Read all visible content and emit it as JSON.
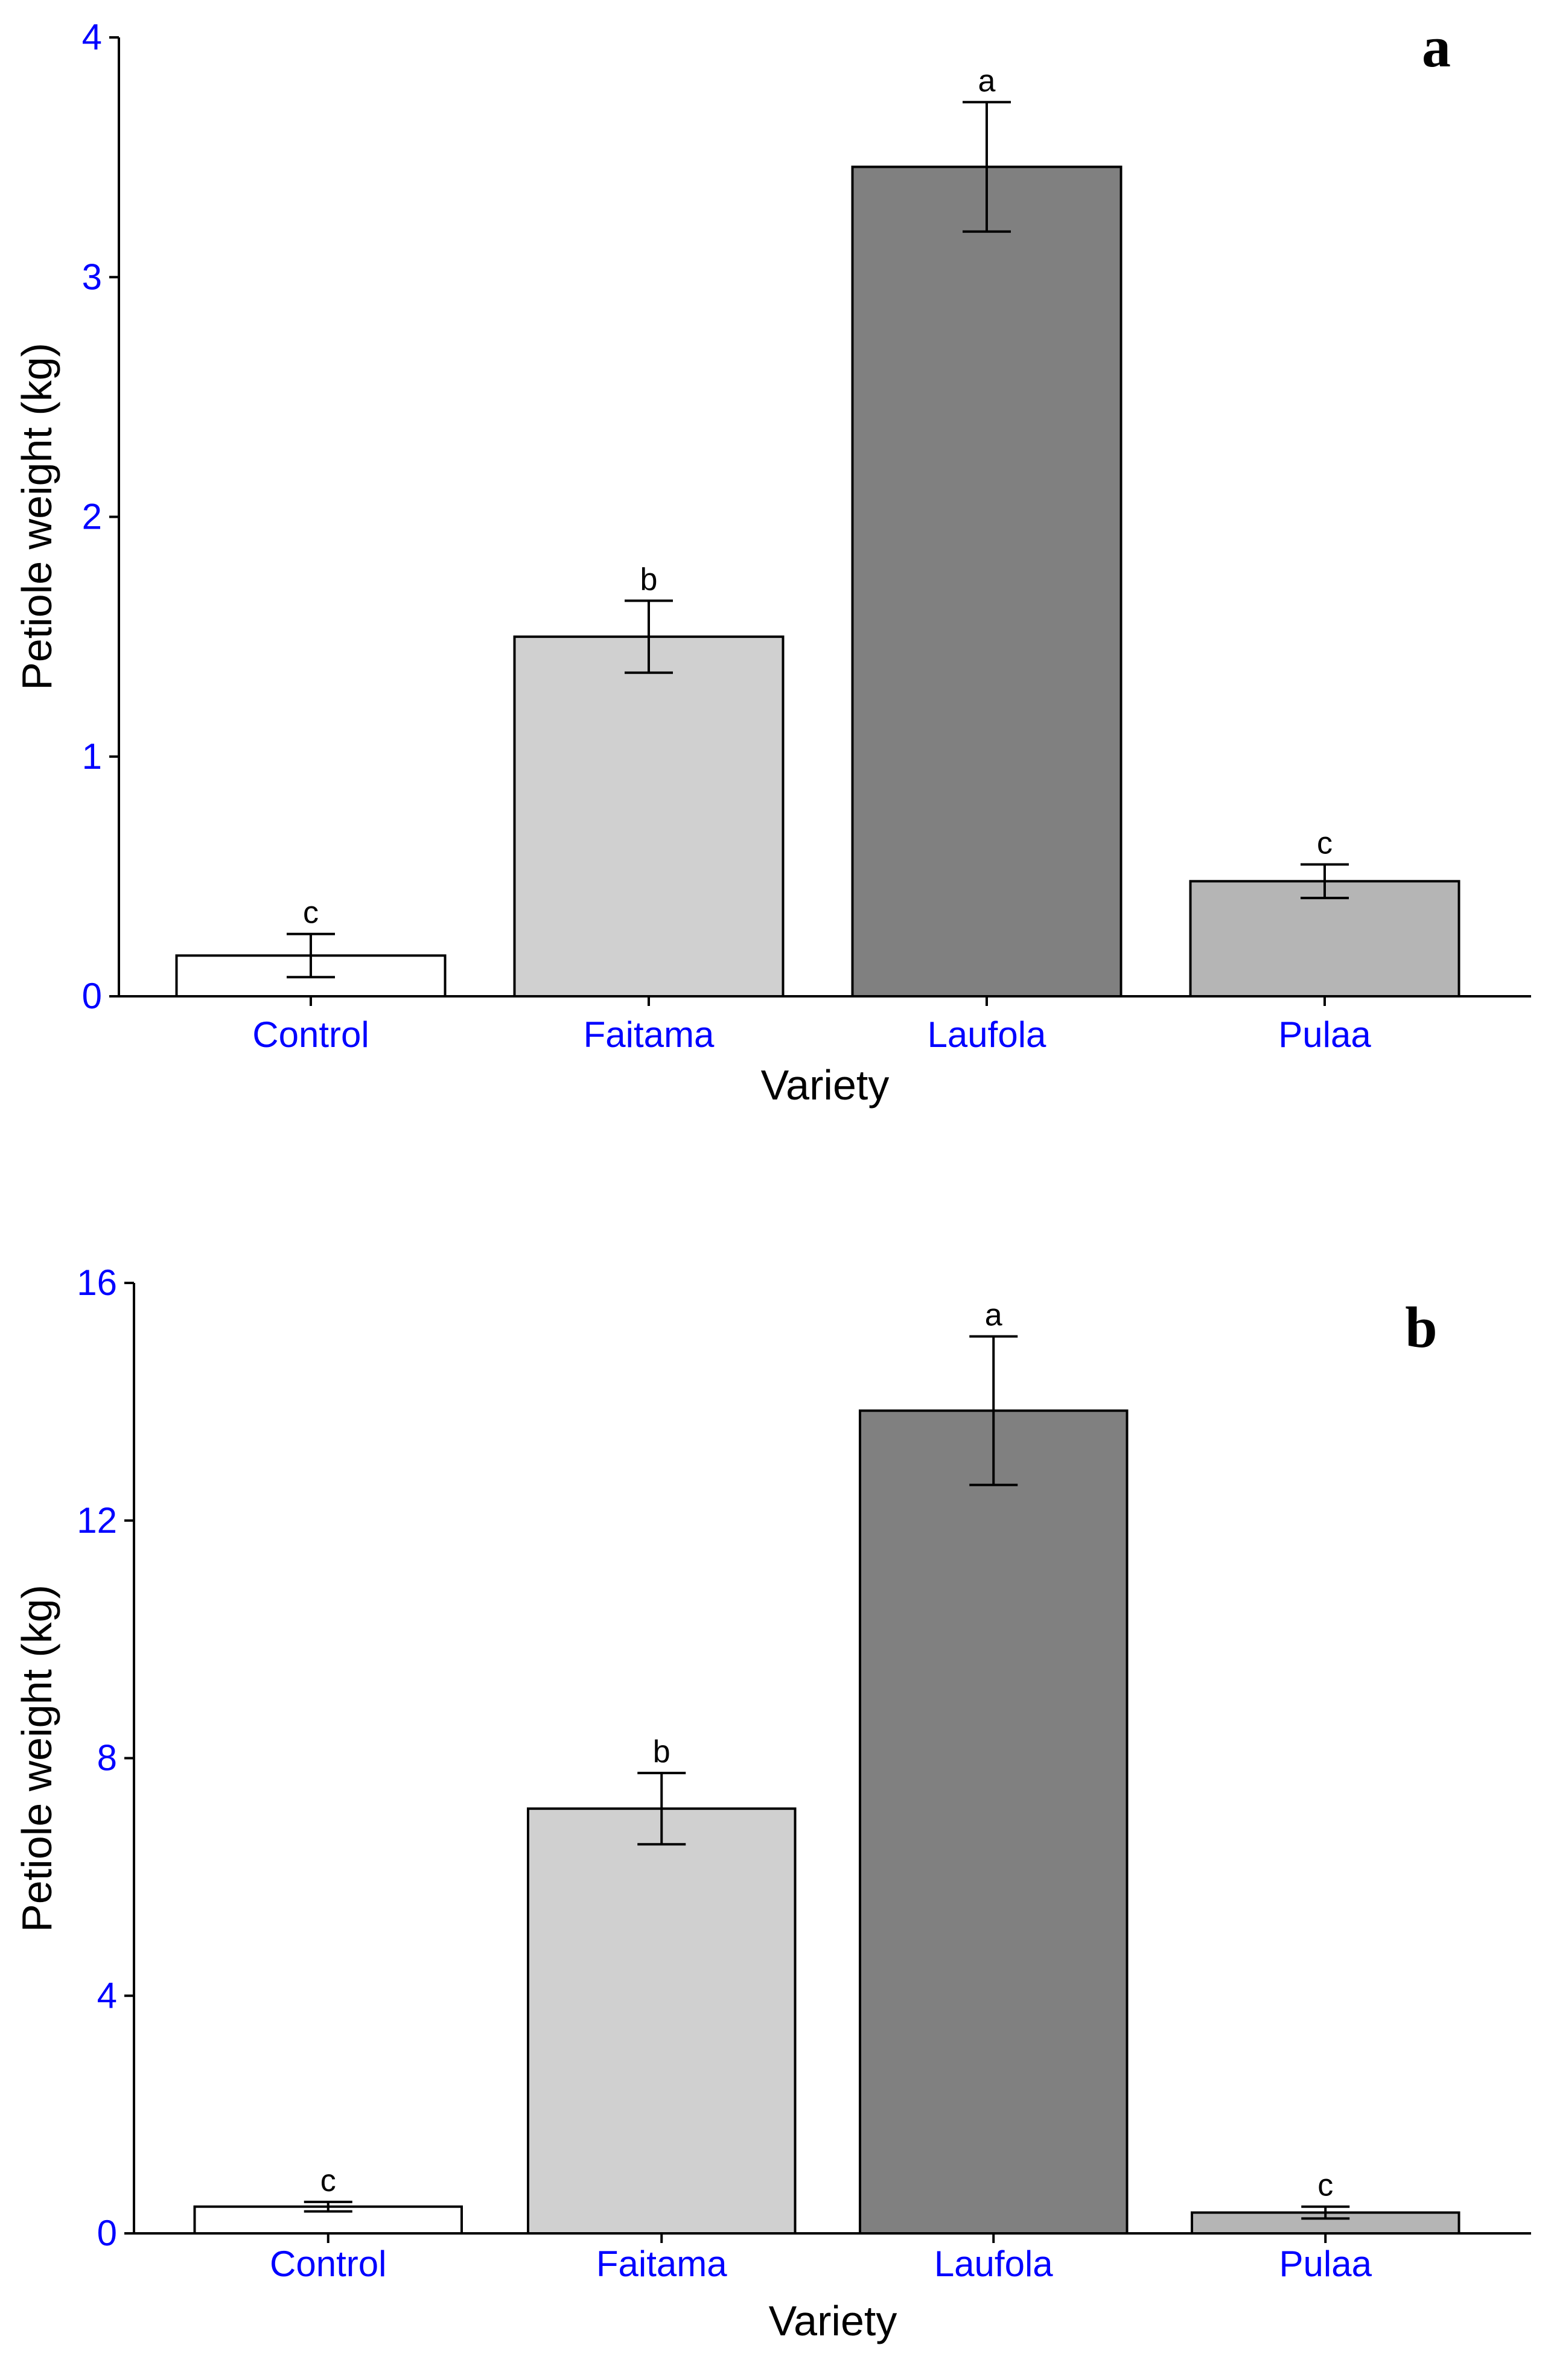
{
  "colors": {
    "tick_label": "#0000ff",
    "axis": "#000000",
    "text": "#000000"
  },
  "chart_data": [
    {
      "type": "bar",
      "panel_label": "a",
      "xlabel": "Variety",
      "ylabel": "Petiole weight (kg)",
      "ylim": [
        0,
        4
      ],
      "yticks": [
        0,
        1,
        2,
        3,
        4
      ],
      "categories": [
        "Control",
        "Faitama",
        "Laufola",
        "Pulaa"
      ],
      "values": [
        0.17,
        1.5,
        3.46,
        0.48
      ],
      "error": [
        0.09,
        0.15,
        0.27,
        0.07
      ],
      "significance": [
        "c",
        "b",
        "a",
        "c"
      ],
      "bar_colors": [
        "#ffffff",
        "#d0d0d0",
        "#808080",
        "#b5b5b5"
      ]
    },
    {
      "type": "bar",
      "panel_label": "b",
      "xlabel": "Variety",
      "ylabel": "Petiole weight (kg)",
      "ylim": [
        0,
        16
      ],
      "yticks": [
        0,
        4,
        8,
        12,
        16
      ],
      "categories": [
        "Control",
        "Faitama",
        "Laufola",
        "Pulaa"
      ],
      "values": [
        0.45,
        7.15,
        13.85,
        0.35
      ],
      "error": [
        0.08,
        0.6,
        1.25,
        0.1
      ],
      "significance": [
        "c",
        "b",
        "a",
        "c"
      ],
      "bar_colors": [
        "#ffffff",
        "#d0d0d0",
        "#808080",
        "#b5b5b5"
      ]
    }
  ]
}
